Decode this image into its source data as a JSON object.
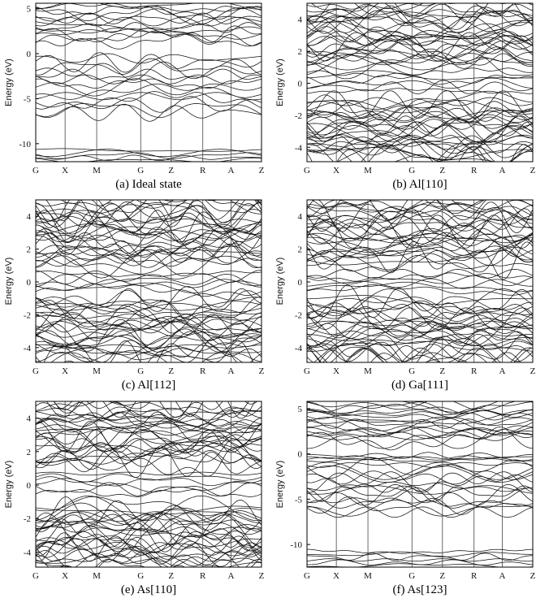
{
  "figure": {
    "hsym_labels": [
      "G",
      "X",
      "M",
      "G",
      "Z",
      "R",
      "A",
      "Z"
    ]
  },
  "chart_data": [
    {
      "type": "line",
      "caption": "(a) Ideal state",
      "ylabel": "Energy (eV)",
      "ylim": [
        -12,
        5.6
      ],
      "yticks": [
        5,
        0,
        -5,
        -10
      ],
      "ytick_labels": [
        "5",
        "0",
        "-5",
        "-10"
      ],
      "x_tick_labels": [
        "G",
        "X",
        "M",
        "G",
        "Z",
        "R",
        "A",
        "Z"
      ],
      "bands": {
        "conduction": {
          "count": 14,
          "range": [
            1.2,
            5.6
          ]
        },
        "valence": {
          "count": 14,
          "range": [
            -6.8,
            -0.3
          ]
        },
        "deep": {
          "count": 5,
          "range": [
            -12,
            -10.6
          ]
        }
      }
    },
    {
      "type": "line",
      "caption": "(b) Al[110]",
      "ylabel": "Energy (eV)",
      "ylim": [
        -4.9,
        5.0
      ],
      "yticks": [
        4,
        2,
        0,
        -2,
        -4
      ],
      "ytick_labels": [
        "4",
        "2",
        "0",
        "-2",
        "-4"
      ],
      "x_tick_labels": [
        "G",
        "X",
        "M",
        "G",
        "Z",
        "R",
        "A",
        "Z"
      ],
      "bands": {
        "conduction": {
          "count": 30,
          "range": [
            1.0,
            5.0
          ]
        },
        "midgap": {
          "count": 6,
          "range": [
            -0.6,
            0.8
          ]
        },
        "valence": {
          "count": 30,
          "range": [
            -4.9,
            -1.0
          ]
        }
      }
    },
    {
      "type": "line",
      "caption": "(c) Al[112]",
      "ylabel": "Energy (eV)",
      "ylim": [
        -4.9,
        5.0
      ],
      "yticks": [
        4,
        2,
        0,
        -2,
        -4
      ],
      "ytick_labels": [
        "4",
        "2",
        "0",
        "-2",
        "-4"
      ],
      "x_tick_labels": [
        "G",
        "X",
        "M",
        "G",
        "Z",
        "R",
        "A",
        "Z"
      ],
      "bands": {
        "conduction": {
          "count": 30,
          "range": [
            1.0,
            5.0
          ]
        },
        "midgap": {
          "count": 6,
          "range": [
            -0.6,
            0.6
          ]
        },
        "valence": {
          "count": 30,
          "range": [
            -4.9,
            -1.0
          ]
        }
      }
    },
    {
      "type": "line",
      "caption": "(d) Ga[111]",
      "ylabel": "Energy (eV)",
      "ylim": [
        -4.9,
        5.0
      ],
      "yticks": [
        4,
        2,
        0,
        -2,
        -4
      ],
      "ytick_labels": [
        "4",
        "2",
        "0",
        "-2",
        "-4"
      ],
      "x_tick_labels": [
        "G",
        "X",
        "M",
        "G",
        "Z",
        "R",
        "A",
        "Z"
      ],
      "bands": {
        "conduction": {
          "count": 30,
          "range": [
            1.0,
            5.0
          ]
        },
        "midgap": {
          "count": 6,
          "range": [
            -0.6,
            0.6
          ]
        },
        "valence": {
          "count": 30,
          "range": [
            -4.9,
            -1.0
          ]
        }
      }
    },
    {
      "type": "line",
      "caption": "(e) As[110]",
      "ylabel": "Energy (eV)",
      "ylim": [
        -4.9,
        5.0
      ],
      "yticks": [
        4,
        2,
        0,
        -2,
        -4
      ],
      "ytick_labels": [
        "4",
        "2",
        "0",
        "-2",
        "-4"
      ],
      "x_tick_labels": [
        "G",
        "X",
        "M",
        "G",
        "Z",
        "R",
        "A",
        "Z"
      ],
      "bands": {
        "conduction": {
          "count": 30,
          "range": [
            1.2,
            5.0
          ]
        },
        "midgap": {
          "count": 6,
          "range": [
            -0.6,
            0.8
          ]
        },
        "valence": {
          "count": 30,
          "range": [
            -4.9,
            -1.2
          ]
        }
      }
    },
    {
      "type": "line",
      "caption": "(f) As[123]",
      "ylabel": "Energy (eV)",
      "ylim": [
        -12.5,
        5.8
      ],
      "yticks": [
        5,
        0,
        -5,
        -10
      ],
      "ytick_labels": [
        "5",
        "0",
        "-5",
        "-10"
      ],
      "x_tick_labels": [
        "G",
        "X",
        "M",
        "G",
        "Z",
        "R",
        "A",
        "Z"
      ],
      "bands": {
        "conduction": {
          "count": 18,
          "range": [
            1.2,
            5.8
          ]
        },
        "midgap": {
          "count": 4,
          "range": [
            -0.8,
            -0.1
          ]
        },
        "valence": {
          "count": 16,
          "range": [
            -6.6,
            -1.0
          ]
        },
        "deep": {
          "count": 6,
          "range": [
            -12.5,
            -10.6
          ]
        }
      }
    }
  ]
}
